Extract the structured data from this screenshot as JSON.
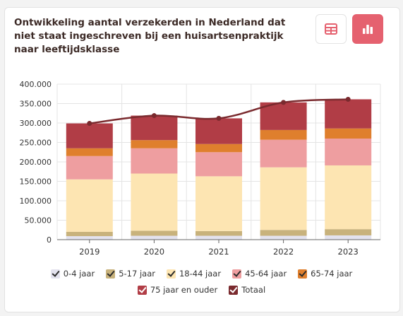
{
  "title": "Ontwikkeling aantal verzekerden in Nederland dat niet staat ingeschreven bij een huisartsenpraktijk naar leeftijdsklasse",
  "toolbar": {
    "table_icon": "table-icon",
    "chart_icon": "bar-chart-icon",
    "active_color": "#e5616f"
  },
  "chart_data": {
    "type": "bar",
    "stacked": true,
    "categories": [
      "2019",
      "2020",
      "2021",
      "2022",
      "2023"
    ],
    "ylim": [
      0,
      400000
    ],
    "yticks": [
      "0",
      "50.000",
      "100.000",
      "150.000",
      "200.000",
      "250.000",
      "300.000",
      "350.000",
      "400.000"
    ],
    "grid": true,
    "legend_position": "bottom",
    "series": [
      {
        "name": "0-4 jaar",
        "color": "#e3e2ee",
        "values": [
          9000,
          10000,
          10000,
          10000,
          11000
        ]
      },
      {
        "name": "5-17 jaar",
        "color": "#c8b27c",
        "values": [
          11000,
          13000,
          12000,
          15000,
          16000
        ]
      },
      {
        "name": "18-44 jaar",
        "color": "#fde5b2",
        "values": [
          135000,
          147000,
          141000,
          161000,
          164000
        ]
      },
      {
        "name": "45-64 jaar",
        "color": "#ee9ea0",
        "values": [
          60000,
          65000,
          62000,
          71000,
          69000
        ]
      },
      {
        "name": "65-74 jaar",
        "color": "#df7f2d",
        "values": [
          20000,
          21000,
          21000,
          25000,
          26000
        ]
      },
      {
        "name": "75 jaar en ouder",
        "color": "#b13d46",
        "values": [
          64000,
          63000,
          66000,
          71000,
          75000
        ]
      }
    ],
    "line_series": {
      "name": "Totaal",
      "color": "#7a2a2e",
      "values": [
        299000,
        319000,
        312000,
        353000,
        361000
      ]
    }
  }
}
